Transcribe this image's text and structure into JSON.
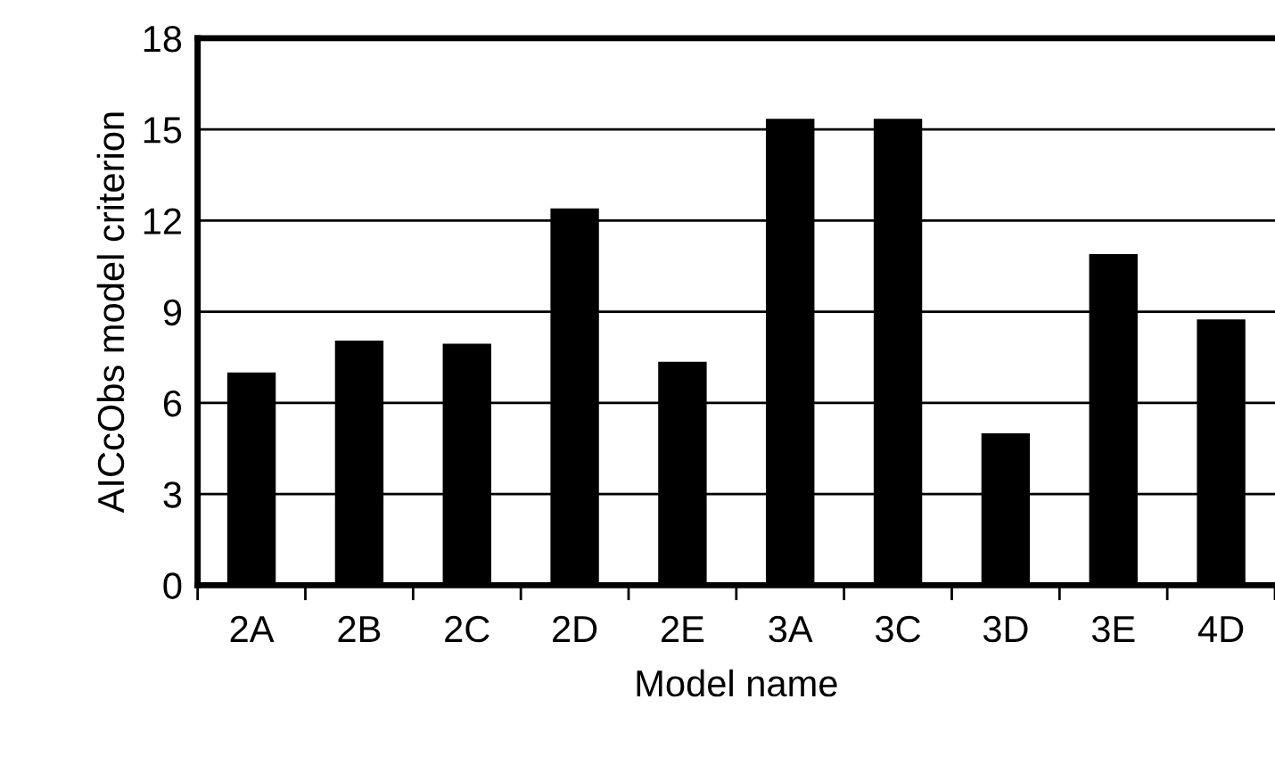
{
  "chart_data": {
    "type": "bar",
    "xlabel": "Model name",
    "ylabel": "AICcObs model criterion",
    "categories": [
      "2A",
      "2B",
      "2C",
      "2D",
      "2E",
      "3A",
      "3C",
      "3D",
      "3E",
      "4D"
    ],
    "values": [
      7.0,
      8.05,
      7.95,
      12.4,
      7.35,
      15.35,
      15.35,
      5.0,
      10.9,
      8.75
    ],
    "color": "#000000",
    "ylim": [
      0,
      18
    ],
    "yticks": [
      0,
      3,
      6,
      9,
      12,
      15,
      18
    ],
    "grid": "y"
  }
}
